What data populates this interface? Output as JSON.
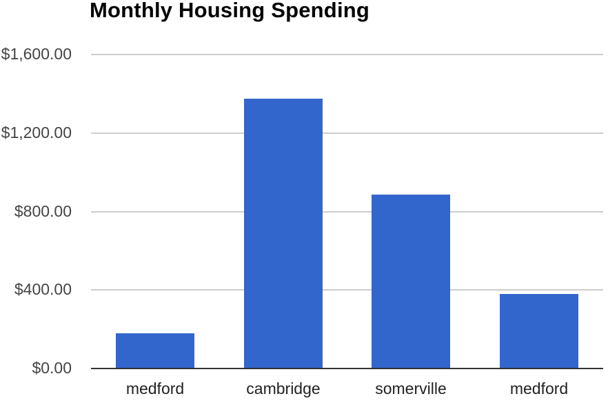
{
  "chart_data": {
    "type": "bar",
    "title": "Monthly Housing Spending",
    "categories": [
      "medford",
      "cambridge",
      "somerville",
      "medford"
    ],
    "values": [
      180,
      1375,
      885,
      380
    ],
    "xlabel": "",
    "ylabel": "",
    "ylim": [
      0,
      1600
    ],
    "yticks": [
      0,
      400,
      800,
      1200,
      1600
    ],
    "ytick_labels": [
      "$0.00",
      "$400.00",
      "$800.00",
      "$1,200.00",
      "$1,600.00"
    ],
    "grid": true,
    "legend_position": "none",
    "colors": {
      "series": "#3366cc",
      "gridline": "#cccccc",
      "axis_line": "#333333",
      "y_tick_label": "#444444",
      "x_category_label": "#222222",
      "title": "#000000",
      "background": "#ffffff"
    }
  }
}
